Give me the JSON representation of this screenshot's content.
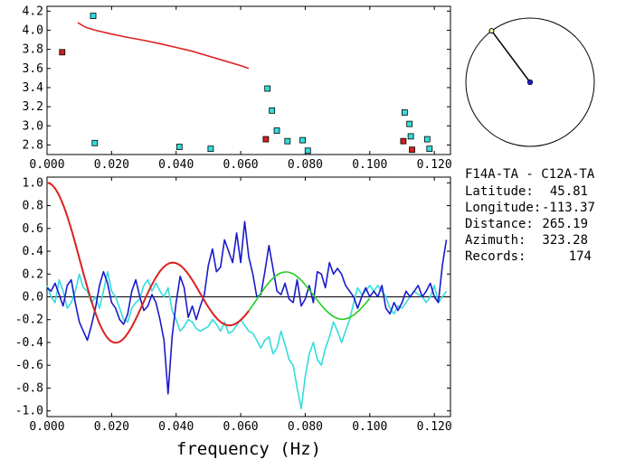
{
  "info": {
    "title": "F14A-TA - C12A-TA",
    "latitude_label": "Latitude:",
    "latitude_value": "45.81",
    "longitude_label": "Longitude:",
    "longitude_value": "-113.37",
    "distance_label": "Distance:",
    "distance_value": "265.19",
    "azimuth_label": "Azimuth:",
    "azimuth_value": "323.28",
    "records_label": "Records:",
    "records_value": "174"
  },
  "chart_data": [
    {
      "type": "scatter",
      "title": "",
      "xlabel": "",
      "ylabel": "",
      "xlim": [
        0.0,
        0.125
      ],
      "ylim": [
        2.7,
        4.25
      ],
      "x_ticks": [
        "0.000",
        "0.020",
        "0.040",
        "0.060",
        "0.080",
        "0.100",
        "0.120"
      ],
      "y_ticks": [
        "2.8",
        "3.0",
        "3.2",
        "3.4",
        "3.6",
        "3.8",
        "4.0",
        "4.2"
      ],
      "series": [
        {
          "name": "cyan-points",
          "color": "#33dddd",
          "points": [
            [
              0.0143,
              4.15
            ],
            [
              0.0148,
              2.82
            ],
            [
              0.041,
              2.78
            ],
            [
              0.0507,
              2.76
            ],
            [
              0.0683,
              3.39
            ],
            [
              0.0697,
              3.16
            ],
            [
              0.0712,
              2.95
            ],
            [
              0.0745,
              2.84
            ],
            [
              0.0792,
              2.85
            ],
            [
              0.0808,
              2.74
            ],
            [
              0.1108,
              3.14
            ],
            [
              0.1123,
              3.02
            ],
            [
              0.1127,
              2.89
            ],
            [
              0.1178,
              2.86
            ],
            [
              0.1185,
              2.76
            ]
          ]
        },
        {
          "name": "red-points",
          "color": "#cc2222",
          "points": [
            [
              0.0047,
              3.77
            ],
            [
              0.0678,
              2.86
            ],
            [
              0.1104,
              2.84
            ],
            [
              0.1131,
              2.75
            ]
          ]
        },
        {
          "name": "red-curve",
          "color": "#dd2222",
          "line": [
            [
              0.0095,
              4.08
            ],
            [
              0.012,
              4.03
            ],
            [
              0.015,
              4.0
            ],
            [
              0.02,
              3.96
            ],
            [
              0.025,
              3.925
            ],
            [
              0.03,
              3.895
            ],
            [
              0.035,
              3.86
            ],
            [
              0.04,
              3.82
            ],
            [
              0.045,
              3.78
            ],
            [
              0.05,
              3.73
            ],
            [
              0.055,
              3.68
            ],
            [
              0.06,
              3.63
            ],
            [
              0.0625,
              3.6
            ]
          ]
        }
      ]
    },
    {
      "type": "line",
      "title": "",
      "xlabel": "frequency (Hz)",
      "ylabel": "",
      "xlim": [
        0.0,
        0.125
      ],
      "ylim": [
        -1.05,
        1.05
      ],
      "x_ticks": [
        "0.000",
        "0.020",
        "0.040",
        "0.060",
        "0.080",
        "0.100",
        "0.120"
      ],
      "y_ticks": [
        "1.0",
        "0.8",
        "0.6",
        "0.4",
        "0.2",
        "0.0",
        "-0.2",
        "-0.4",
        "-0.6",
        "-0.8",
        "-1.0"
      ],
      "series": [
        {
          "name": "blue-observed",
          "color": "#1a1acc",
          "x_start": 0.0,
          "x_step": 0.00125,
          "values": [
            0.08,
            0.05,
            0.12,
            0.02,
            -0.08,
            0.1,
            0.15,
            -0.05,
            -0.22,
            -0.3,
            -0.38,
            -0.25,
            -0.1,
            0.1,
            0.22,
            0.12,
            -0.05,
            -0.1,
            -0.2,
            -0.24,
            -0.15,
            0.05,
            0.15,
            0.0,
            -0.12,
            -0.08,
            0.02,
            -0.05,
            -0.2,
            -0.38,
            -0.85,
            -0.35,
            -0.05,
            0.18,
            0.08,
            -0.18,
            -0.08,
            -0.2,
            -0.08,
            0.02,
            0.28,
            0.42,
            0.22,
            0.26,
            0.5,
            0.4,
            0.3,
            0.56,
            0.3,
            0.66,
            0.35,
            0.2,
            0.0,
            0.02,
            0.22,
            0.45,
            0.25,
            0.05,
            0.02,
            0.12,
            -0.02,
            -0.05,
            0.15,
            -0.08,
            -0.02,
            0.1,
            -0.05,
            0.22,
            0.2,
            0.08,
            0.3,
            0.2,
            0.25,
            0.2,
            0.1,
            0.05,
            0.0,
            -0.1,
            0.0,
            0.08,
            0.0,
            0.05,
            0.0,
            0.1,
            -0.1,
            -0.15,
            -0.05,
            -0.12,
            -0.05,
            0.05,
            0.0,
            0.05,
            0.1,
            0.0,
            0.05,
            0.12,
            0.0,
            -0.05,
            0.28,
            0.5
          ]
        },
        {
          "name": "cyan-observed",
          "color": "#33dddd",
          "x_start": 0.0,
          "x_step": 0.00125,
          "values": [
            0.1,
            0.0,
            -0.05,
            0.15,
            0.05,
            -0.1,
            -0.05,
            0.05,
            0.2,
            0.08,
            0.05,
            -0.05,
            0.0,
            -0.1,
            0.05,
            0.22,
            0.05,
            0.0,
            -0.1,
            -0.2,
            -0.22,
            -0.1,
            -0.05,
            -0.02,
            0.1,
            0.15,
            0.05,
            0.12,
            0.05,
            0.0,
            0.08,
            -0.12,
            -0.2,
            -0.3,
            -0.26,
            -0.2,
            -0.22,
            -0.28,
            -0.3,
            -0.28,
            -0.26,
            -0.2,
            -0.24,
            -0.3,
            -0.22,
            -0.32,
            -0.3,
            -0.25,
            -0.2,
            -0.25,
            -0.3,
            -0.32,
            -0.38,
            -0.45,
            -0.38,
            -0.35,
            -0.5,
            -0.45,
            -0.3,
            -0.42,
            -0.55,
            -0.6,
            -0.8,
            -0.98,
            -0.7,
            -0.5,
            -0.4,
            -0.55,
            -0.6,
            -0.45,
            -0.35,
            -0.22,
            -0.3,
            -0.4,
            -0.3,
            -0.2,
            -0.05,
            0.08,
            0.02,
            0.05,
            0.1,
            0.05,
            0.1,
            0.05,
            0.0,
            -0.1,
            -0.15,
            -0.08,
            -0.1,
            -0.05,
            0.0,
            0.05,
            0.02,
            0.0,
            -0.05,
            0.0,
            0.1,
            -0.05,
            0.0,
            0.05
          ]
        },
        {
          "name": "green-model",
          "color": "#22cc22",
          "function": "bessel_j0",
          "k": 180,
          "x_from": 0.0,
          "x_to": 0.1
        },
        {
          "name": "red-model",
          "color": "#dd2222",
          "function": "bessel_j0",
          "k": 180,
          "x_from": 0.0,
          "x_to": 0.0625
        }
      ]
    }
  ],
  "azimuth_dial": {
    "azimuth_deg": 323.28
  }
}
